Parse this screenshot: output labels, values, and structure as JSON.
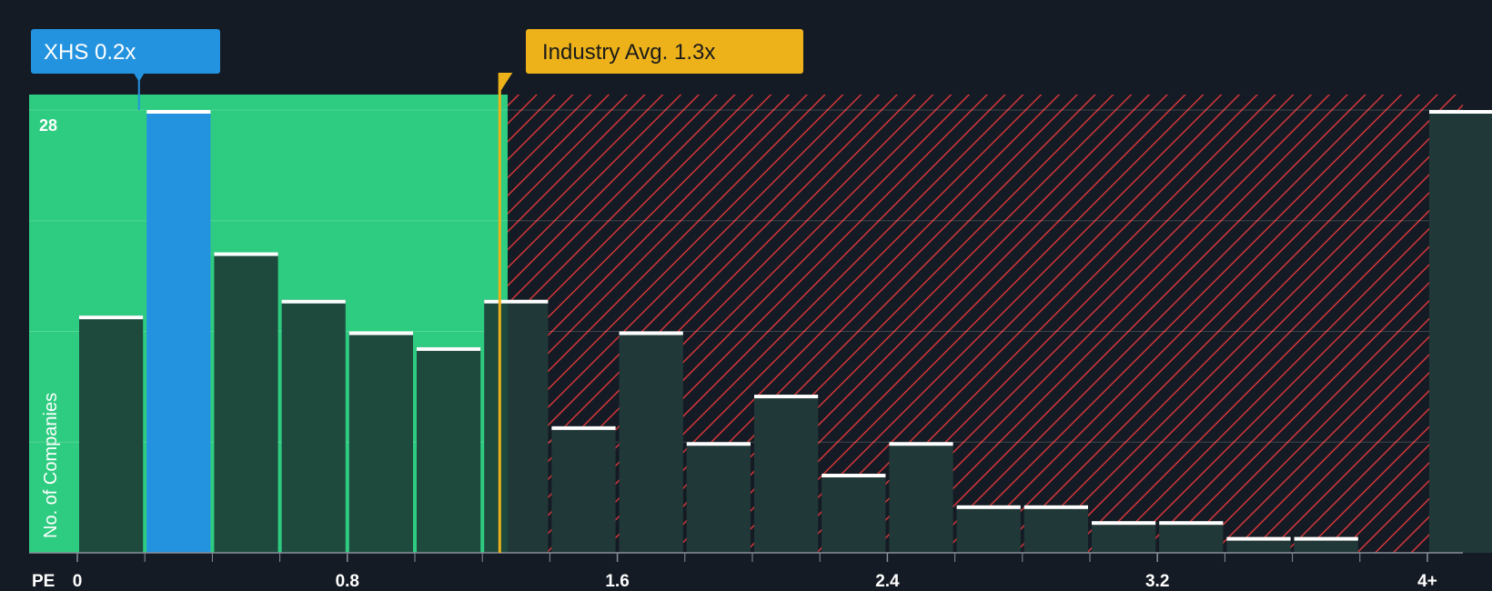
{
  "chart_data": {
    "type": "bar",
    "title": "",
    "xlabel": "PE",
    "ylabel": "No. of Companies",
    "x_tick_labels": [
      "0",
      "0.8",
      "1.6",
      "2.4",
      "3.2",
      "4+"
    ],
    "x_tick_values": [
      0,
      0.8,
      1.6,
      2.4,
      3.2,
      4.0
    ],
    "bin_width": 0.2,
    "bins": [
      {
        "start": 0.0,
        "value": 15
      },
      {
        "start": 0.2,
        "value": 28
      },
      {
        "start": 0.4,
        "value": 19
      },
      {
        "start": 0.6,
        "value": 16
      },
      {
        "start": 0.8,
        "value": 14
      },
      {
        "start": 1.0,
        "value": 13
      },
      {
        "start": 1.2,
        "value": 16
      },
      {
        "start": 1.4,
        "value": 8
      },
      {
        "start": 1.6,
        "value": 14
      },
      {
        "start": 1.8,
        "value": 7
      },
      {
        "start": 2.0,
        "value": 10
      },
      {
        "start": 2.2,
        "value": 5
      },
      {
        "start": 2.4,
        "value": 7
      },
      {
        "start": 2.6,
        "value": 3
      },
      {
        "start": 2.8,
        "value": 3
      },
      {
        "start": 3.0,
        "value": 2
      },
      {
        "start": 3.2,
        "value": 2
      },
      {
        "start": 3.4,
        "value": 1
      },
      {
        "start": 3.6,
        "value": 1
      },
      {
        "start": 4.0,
        "value": 28
      }
    ],
    "highlight_bin_start": 0.2,
    "ylim": [
      0,
      28
    ],
    "y_max_label": "28",
    "gridlines_at": [
      7,
      14,
      21,
      28
    ],
    "grid": true,
    "fair_range_end": 1.275,
    "annotations": {
      "company": {
        "label": "XHS 0.2x",
        "value": 0.2
      },
      "industry": {
        "label": "Industry Avg. 1.3x",
        "value": 1.3
      }
    },
    "colors": {
      "background": "#151b24",
      "fair_zone": "#2ecc80",
      "fair_bar": "#1e4a3e",
      "highlight_bar": "#2393e0",
      "hatch_line": "#d3363a",
      "hatch_bar": "#252a33",
      "cap": "#ffffff",
      "company_callout": "#2393e0",
      "industry_callout": "#edb21a",
      "callout_text_dark": "#1b1b1b",
      "text": "#ffffff"
    }
  }
}
